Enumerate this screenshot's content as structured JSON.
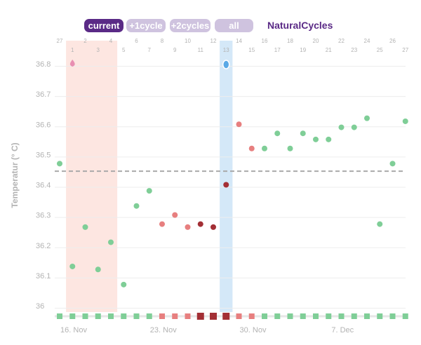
{
  "tabs": [
    {
      "label": "current",
      "active": true
    },
    {
      "label": "+1cycle",
      "active": false
    },
    {
      "label": "+2cycles",
      "active": false
    },
    {
      "label": "all",
      "active": false
    }
  ],
  "brand": "NaturalCycles",
  "colors": {
    "brand": "#5a2a86",
    "tab_inactive": "#cfc3df",
    "green": "#7fce97",
    "red": "#e77f7f",
    "dark_red": "#a32f35",
    "period_band": "#fde6e1",
    "ovulation_band": "#d4e8f8",
    "cover_line": "#a9a9a9"
  },
  "chart_data": {
    "type": "scatter",
    "ylabel": "Temperatur (° C)",
    "ylim": [
      36.0,
      36.85
    ],
    "yticks": [
      "36",
      "36.1",
      "36.2",
      "36.3",
      "36.4",
      "36.5",
      "36.6",
      "36.7",
      "36.8"
    ],
    "cycle_days": [
      "27",
      "1",
      "2",
      "3",
      "4",
      "5",
      "6",
      "7",
      "8",
      "9",
      "10",
      "11",
      "12",
      "13",
      "14",
      "15",
      "16",
      "17",
      "18",
      "19",
      "20",
      "21",
      "22",
      "23",
      "24",
      "25",
      "26",
      "27"
    ],
    "date_labels": [
      "16. Nov",
      "23. Nov",
      "30. Nov",
      "7. Dec"
    ],
    "cover_line": 36.445,
    "period_days": [
      1,
      2,
      3,
      4
    ],
    "ovulation_day_index": 13,
    "period_drop_marker_day_index": 1,
    "ovulation_drop_marker_day_index": 13,
    "points": [
      {
        "day": "27",
        "value": 36.47,
        "status": "green"
      },
      {
        "day": "1",
        "value": 36.13,
        "status": "green"
      },
      {
        "day": "2",
        "value": 36.26,
        "status": "green"
      },
      {
        "day": "3",
        "value": 36.12,
        "status": "green"
      },
      {
        "day": "4",
        "value": 36.21,
        "status": "green"
      },
      {
        "day": "5",
        "value": 36.07,
        "status": "green"
      },
      {
        "day": "6",
        "value": 36.33,
        "status": "green"
      },
      {
        "day": "7",
        "value": 36.38,
        "status": "green"
      },
      {
        "day": "8",
        "value": 36.27,
        "status": "red"
      },
      {
        "day": "9",
        "value": 36.3,
        "status": "red"
      },
      {
        "day": "10",
        "value": 36.26,
        "status": "red"
      },
      {
        "day": "11",
        "value": 36.27,
        "status": "dark_red"
      },
      {
        "day": "12",
        "value": 36.26,
        "status": "dark_red"
      },
      {
        "day": "13",
        "value": 36.4,
        "status": "dark_red"
      },
      {
        "day": "14",
        "value": 36.6,
        "status": "red"
      },
      {
        "day": "15",
        "value": 36.52,
        "status": "red"
      },
      {
        "day": "16",
        "value": 36.52,
        "status": "green"
      },
      {
        "day": "17",
        "value": 36.57,
        "status": "green"
      },
      {
        "day": "18",
        "value": 36.52,
        "status": "green"
      },
      {
        "day": "19",
        "value": 36.57,
        "status": "green"
      },
      {
        "day": "20",
        "value": 36.55,
        "status": "green"
      },
      {
        "day": "21",
        "value": 36.55,
        "status": "green"
      },
      {
        "day": "22",
        "value": 36.59,
        "status": "green"
      },
      {
        "day": "23",
        "value": 36.59,
        "status": "green"
      },
      {
        "day": "24",
        "value": 36.62,
        "status": "green"
      },
      {
        "day": "25",
        "value": 36.27,
        "status": "green"
      },
      {
        "day": "26",
        "value": 36.47,
        "status": "green"
      },
      {
        "day": "27",
        "value": 36.61,
        "status": "green"
      }
    ],
    "fertility_strip": [
      "green",
      "green",
      "green",
      "green",
      "green",
      "green",
      "green",
      "green",
      "red",
      "red",
      "red",
      "dark_red",
      "dark_red",
      "dark_red",
      "red",
      "red",
      "green",
      "green",
      "green",
      "green",
      "green",
      "green",
      "green",
      "green",
      "green",
      "green",
      "green",
      "green"
    ]
  }
}
